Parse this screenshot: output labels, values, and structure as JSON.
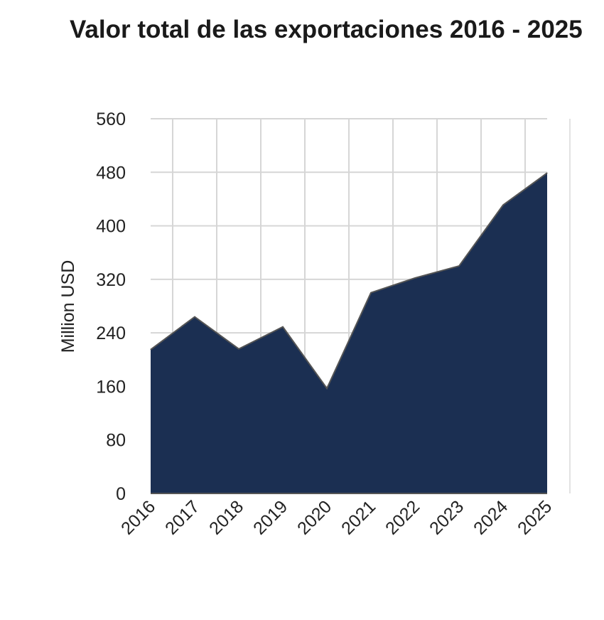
{
  "chart_data": {
    "type": "area",
    "title": "Valor total de las exportaciones 2016 - 2025",
    "xlabel": "",
    "ylabel": "Million USD",
    "x": [
      "2016",
      "2017",
      "2018",
      "2019",
      "2020",
      "2021",
      "2022",
      "2023",
      "2024",
      "2025"
    ],
    "series": [
      {
        "values": [
          215,
          264,
          216,
          249,
          157,
          300,
          322,
          340,
          431,
          479
        ]
      }
    ],
    "ylim": [
      0,
      560
    ],
    "yticks": [
      0,
      80,
      160,
      240,
      320,
      400,
      480,
      560
    ],
    "grid": true,
    "legend": "none",
    "colors": {
      "area_fill": "#1b2f52",
      "area_line": "#555555",
      "grid": "#d6d6d6",
      "baseline": "#555555"
    }
  }
}
